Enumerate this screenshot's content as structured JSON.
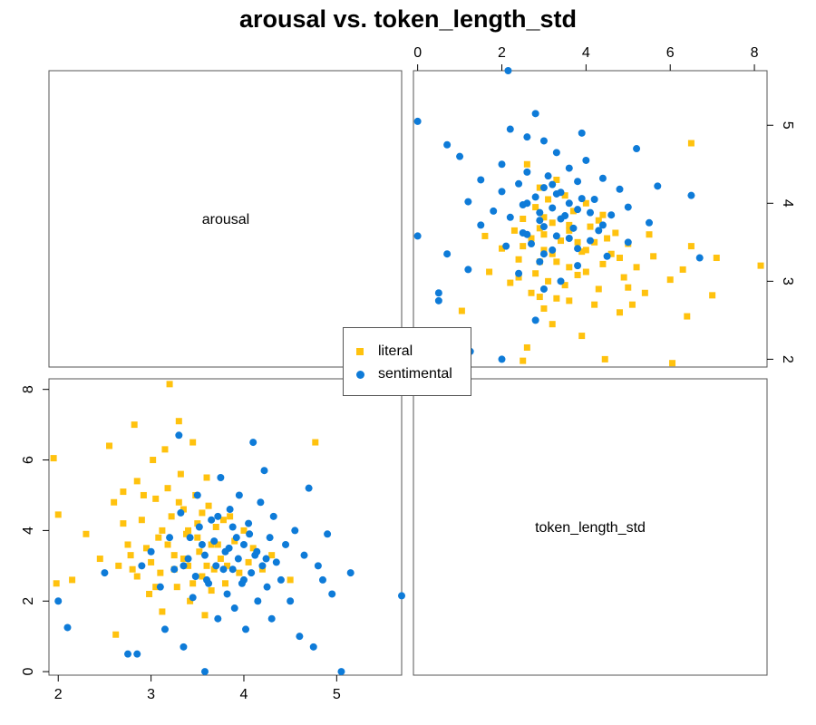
{
  "chart_data": {
    "type": "scatter",
    "title": "arousal vs. token_length_std",
    "variables": [
      "arousal",
      "token_length_std"
    ],
    "axis_ranges": {
      "arousal": [
        1.9,
        5.7
      ],
      "token_length_std": [
        -0.1,
        8.3
      ]
    },
    "ticks": {
      "arousal": [
        "2",
        "3",
        "4",
        "5"
      ],
      "token_length_std": [
        "0",
        "2",
        "4",
        "6",
        "8"
      ]
    },
    "grid": false,
    "legend_placement": "center",
    "series": [
      {
        "name": "literal",
        "marker": "square",
        "color": "#FFC20E",
        "points": [
          [
            1.95,
            6.05
          ],
          [
            2.0,
            4.45
          ],
          [
            1.98,
            2.5
          ],
          [
            2.15,
            2.6
          ],
          [
            2.3,
            3.9
          ],
          [
            2.45,
            3.2
          ],
          [
            2.55,
            6.4
          ],
          [
            2.6,
            4.8
          ],
          [
            2.62,
            1.05
          ],
          [
            2.7,
            5.1
          ],
          [
            2.75,
            3.6
          ],
          [
            2.8,
            2.9
          ],
          [
            2.82,
            7.0
          ],
          [
            2.85,
            5.4
          ],
          [
            2.9,
            4.3
          ],
          [
            2.95,
            3.5
          ],
          [
            2.98,
            2.2
          ],
          [
            3.02,
            6.0
          ],
          [
            3.05,
            4.9
          ],
          [
            3.08,
            3.8
          ],
          [
            3.1,
            2.8
          ],
          [
            3.12,
            1.7
          ],
          [
            3.15,
            6.3
          ],
          [
            3.18,
            5.2
          ],
          [
            3.2,
            8.15
          ],
          [
            3.22,
            4.4
          ],
          [
            3.25,
            3.3
          ],
          [
            3.28,
            2.4
          ],
          [
            3.3,
            7.1
          ],
          [
            3.32,
            5.6
          ],
          [
            3.35,
            4.6
          ],
          [
            3.38,
            3.9
          ],
          [
            3.4,
            3.0
          ],
          [
            3.42,
            2.0
          ],
          [
            3.45,
            6.5
          ],
          [
            3.48,
            5.0
          ],
          [
            3.5,
            4.2
          ],
          [
            3.52,
            3.4
          ],
          [
            3.55,
            2.7
          ],
          [
            3.58,
            1.6
          ],
          [
            3.6,
            5.5
          ],
          [
            3.62,
            4.7
          ],
          [
            3.65,
            3.6
          ],
          [
            3.68,
            2.9
          ],
          [
            3.7,
            4.1
          ],
          [
            3.75,
            3.2
          ],
          [
            3.8,
            2.5
          ],
          [
            3.85,
            4.4
          ],
          [
            3.9,
            3.7
          ],
          [
            3.95,
            2.8
          ],
          [
            4.0,
            4.0
          ],
          [
            4.05,
            3.1
          ],
          [
            4.1,
            3.5
          ],
          [
            4.2,
            2.9
          ],
          [
            4.3,
            3.3
          ],
          [
            4.5,
            2.6
          ],
          [
            4.77,
            6.5
          ],
          [
            2.65,
            3.0
          ],
          [
            2.7,
            4.2
          ],
          [
            2.78,
            3.3
          ],
          [
            2.85,
            2.7
          ],
          [
            2.92,
            5.0
          ],
          [
            3.0,
            3.1
          ],
          [
            3.05,
            2.4
          ],
          [
            3.12,
            4.0
          ],
          [
            3.18,
            3.6
          ],
          [
            3.25,
            2.9
          ],
          [
            3.3,
            4.8
          ],
          [
            3.35,
            3.2
          ],
          [
            3.4,
            4.0
          ],
          [
            3.45,
            2.5
          ],
          [
            3.5,
            3.8
          ],
          [
            3.55,
            4.5
          ],
          [
            3.6,
            3.0
          ],
          [
            3.65,
            2.3
          ],
          [
            3.72,
            3.6
          ],
          [
            3.78,
            4.3
          ],
          [
            3.82,
            3.0
          ]
        ]
      },
      {
        "name": "sentimental",
        "marker": "circle",
        "color": "#0E7BD8",
        "points": [
          [
            2.0,
            2.0
          ],
          [
            2.1,
            1.25
          ],
          [
            2.5,
            2.8
          ],
          [
            2.75,
            0.5
          ],
          [
            2.85,
            0.5
          ],
          [
            2.9,
            3.0
          ],
          [
            3.0,
            3.4
          ],
          [
            3.1,
            2.4
          ],
          [
            3.15,
            1.2
          ],
          [
            3.2,
            3.8
          ],
          [
            3.25,
            2.9
          ],
          [
            3.3,
            6.7
          ],
          [
            3.32,
            4.5
          ],
          [
            3.35,
            0.7
          ],
          [
            3.4,
            3.2
          ],
          [
            3.45,
            2.1
          ],
          [
            3.5,
            5.0
          ],
          [
            3.55,
            3.6
          ],
          [
            3.58,
            0.0
          ],
          [
            3.6,
            2.6
          ],
          [
            3.65,
            4.3
          ],
          [
            3.7,
            3.0
          ],
          [
            3.72,
            1.5
          ],
          [
            3.75,
            5.5
          ],
          [
            3.8,
            3.4
          ],
          [
            3.82,
            2.2
          ],
          [
            3.85,
            4.6
          ],
          [
            3.88,
            2.9
          ],
          [
            3.9,
            1.8
          ],
          [
            3.92,
            3.8
          ],
          [
            3.95,
            5.0
          ],
          [
            3.98,
            2.5
          ],
          [
            4.0,
            3.6
          ],
          [
            4.02,
            1.2
          ],
          [
            4.05,
            4.2
          ],
          [
            4.08,
            2.8
          ],
          [
            4.1,
            6.5
          ],
          [
            4.12,
            3.3
          ],
          [
            4.15,
            2.0
          ],
          [
            4.18,
            4.8
          ],
          [
            4.2,
            3.0
          ],
          [
            4.22,
            5.7
          ],
          [
            4.25,
            2.4
          ],
          [
            4.28,
            3.8
          ],
          [
            4.3,
            1.5
          ],
          [
            4.32,
            4.4
          ],
          [
            4.35,
            3.1
          ],
          [
            4.4,
            2.6
          ],
          [
            4.45,
            3.6
          ],
          [
            4.5,
            2.0
          ],
          [
            4.55,
            4.0
          ],
          [
            4.6,
            1.0
          ],
          [
            4.65,
            3.3
          ],
          [
            4.7,
            5.2
          ],
          [
            4.75,
            0.7
          ],
          [
            4.8,
            3.0
          ],
          [
            4.85,
            2.6
          ],
          [
            4.9,
            3.9
          ],
          [
            4.95,
            2.2
          ],
          [
            5.05,
            0.0
          ],
          [
            5.15,
            2.8
          ],
          [
            5.7,
            2.15
          ],
          [
            3.35,
            3.0
          ],
          [
            3.42,
            3.8
          ],
          [
            3.48,
            2.7
          ],
          [
            3.52,
            4.1
          ],
          [
            3.58,
            3.3
          ],
          [
            3.62,
            2.5
          ],
          [
            3.68,
            3.7
          ],
          [
            3.72,
            4.4
          ],
          [
            3.78,
            2.9
          ],
          [
            3.84,
            3.5
          ],
          [
            3.88,
            4.1
          ],
          [
            3.94,
            3.2
          ],
          [
            4.0,
            2.6
          ],
          [
            4.06,
            3.9
          ],
          [
            4.14,
            3.4
          ],
          [
            4.24,
            3.2
          ]
        ]
      }
    ],
    "diagonal_labels": [
      "arousal",
      "token_length_std"
    ]
  }
}
